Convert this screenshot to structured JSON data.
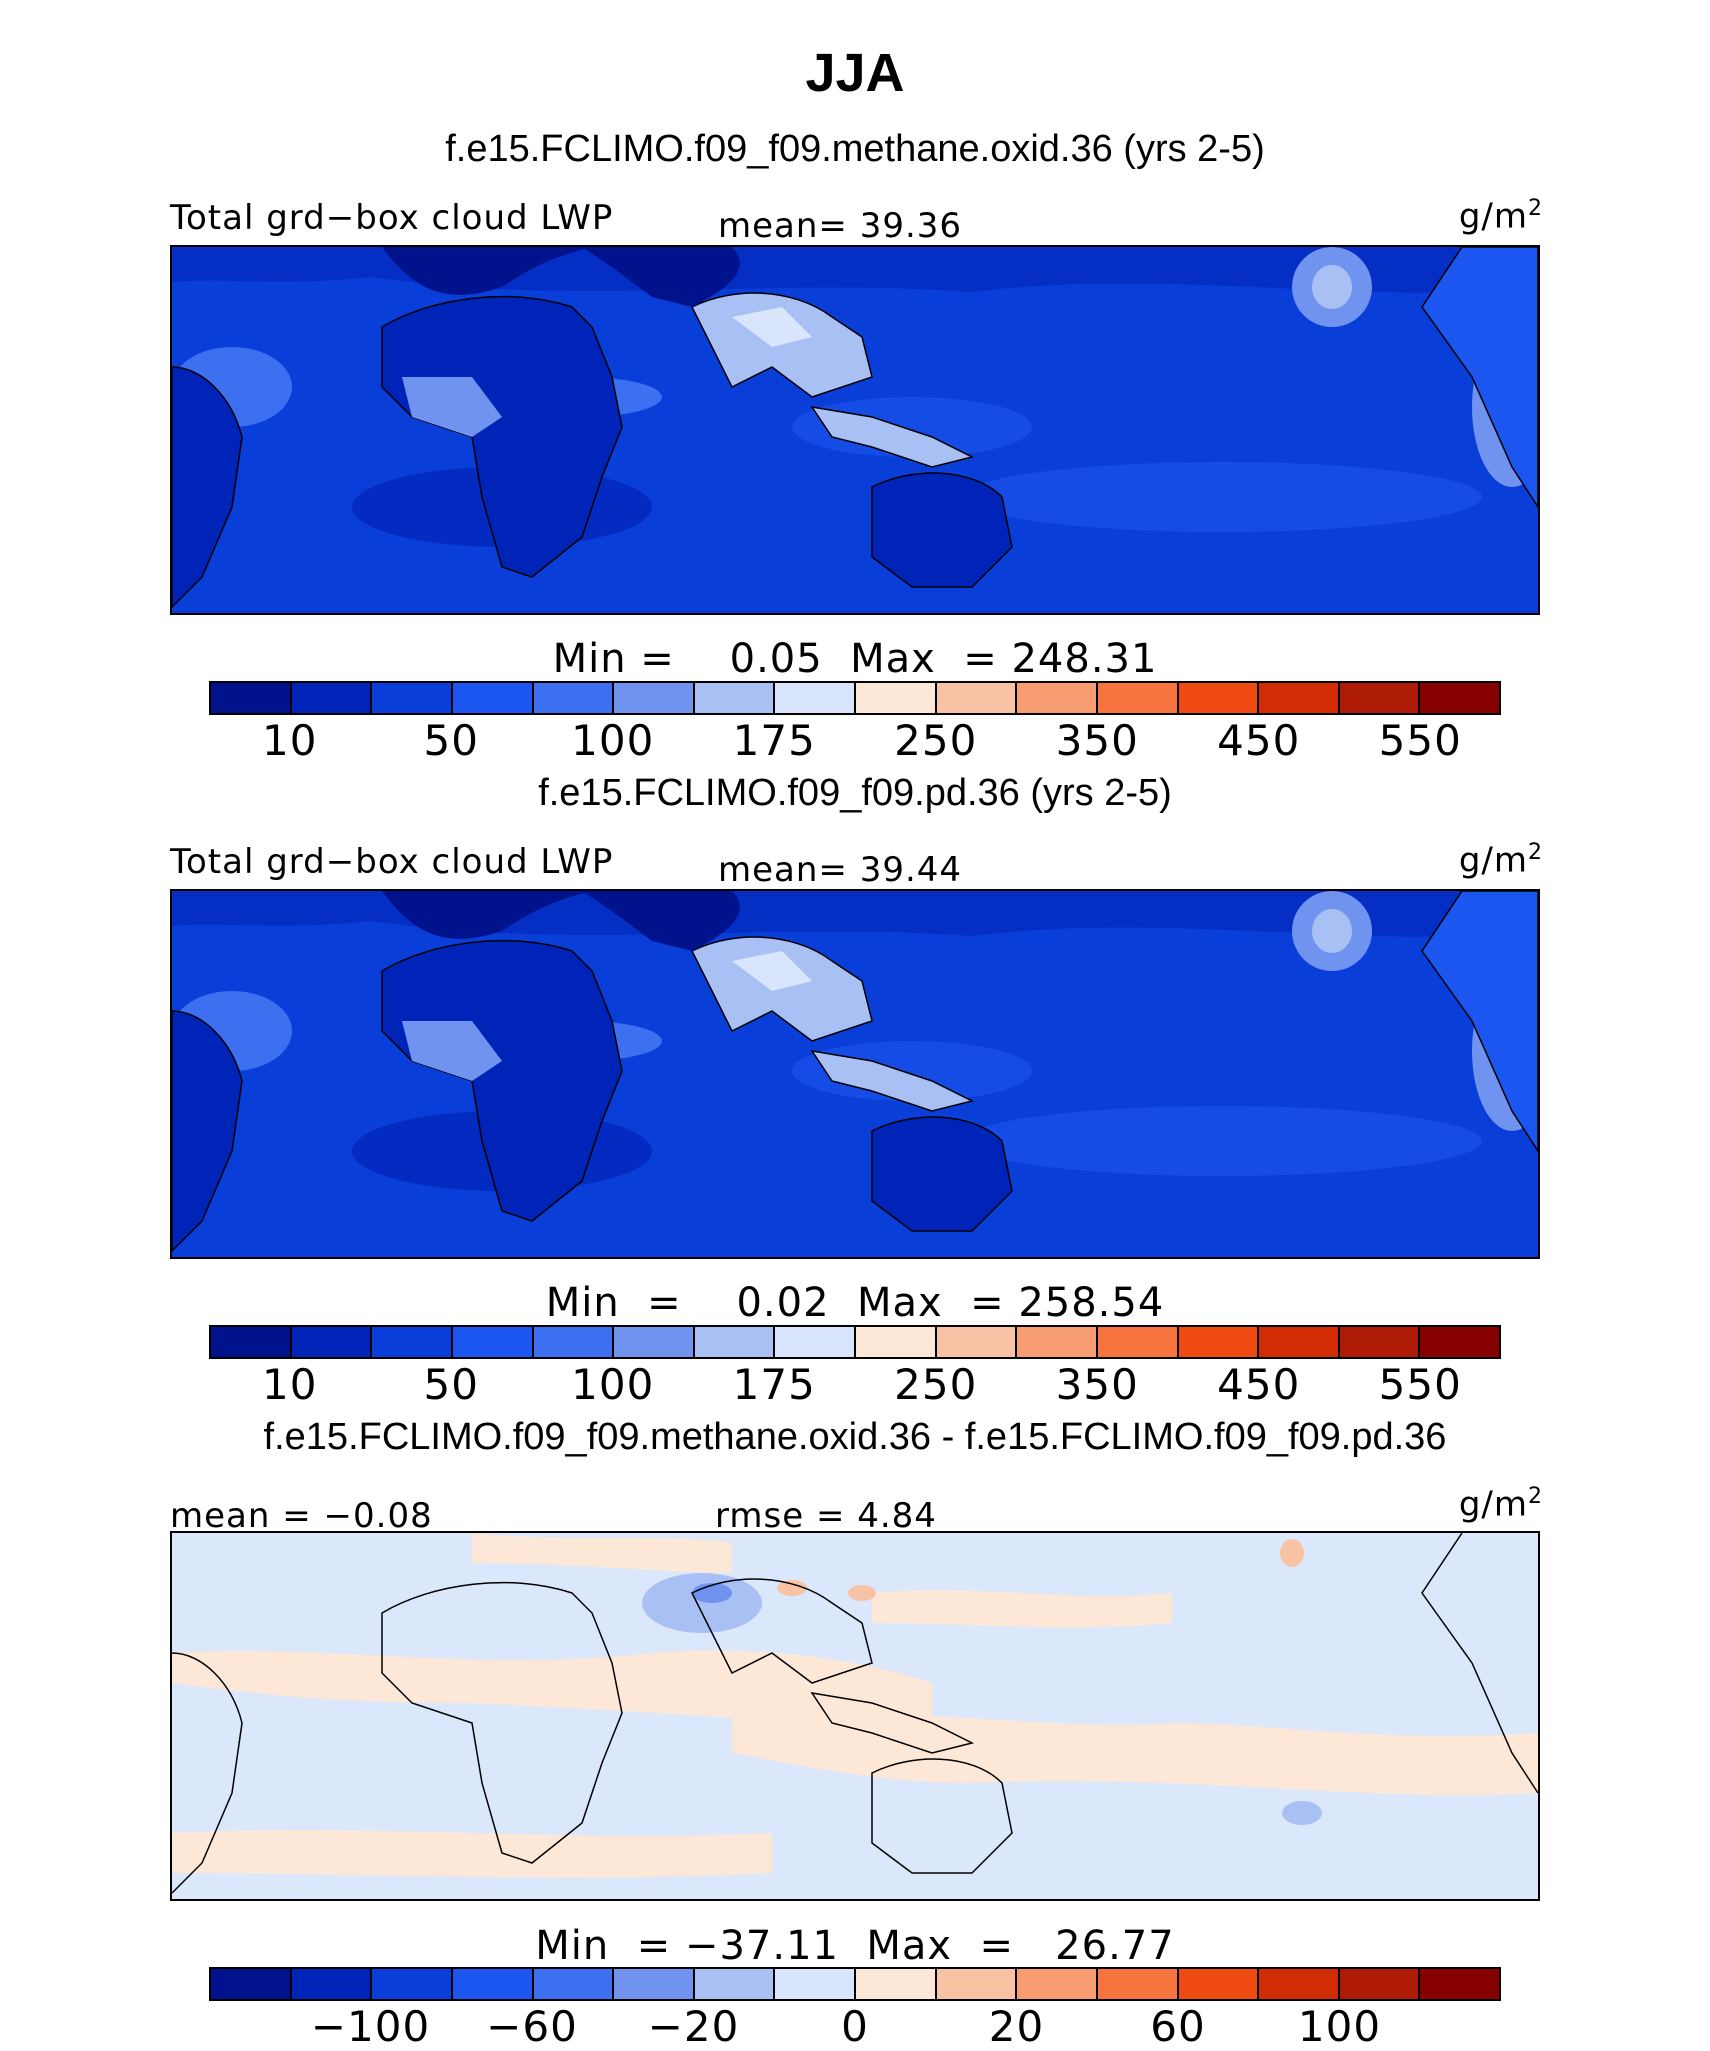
{
  "title": "JJA",
  "colors": {
    "abs_palette": [
      "#00128c",
      "#0024b8",
      "#0a3ed8",
      "#1c56f0",
      "#3d70f0",
      "#7093f0",
      "#a9c0f5",
      "#d8e5fb",
      "#fde7d6",
      "#f8c3a5",
      "#f89c72",
      "#f7743f",
      "#ef4a12",
      "#d22c05",
      "#ad1a05",
      "#860000"
    ],
    "diff_palette": [
      "#00128c",
      "#0024b8",
      "#0a3ed8",
      "#1c56f0",
      "#3d70f0",
      "#7093f0",
      "#a9c0f5",
      "#d8e5fb",
      "#fde7d6",
      "#f8c3a5",
      "#f89c72",
      "#f7743f",
      "#ef4a12",
      "#d22c05",
      "#ad1a05",
      "#860000"
    ],
    "ocean_abs": "#0a3ed8",
    "ocean_diff": "#dbe7fb",
    "land_line": "#000000"
  },
  "panels": [
    {
      "case_title": "f.e15.FCLIMO.f09_f09.methane.oxid.36 (yrs 2-5)",
      "left_label": "Total grd−box cloud LWP",
      "center_label": "mean=  39.36",
      "units": "g/m",
      "units_sup": "2",
      "minmax": "Min =    0.05  Max  = 248.31",
      "palette": "abs",
      "tick_labels": [
        "10",
        "50",
        "100",
        "175",
        "250",
        "350",
        "450",
        "550"
      ]
    },
    {
      "case_title": "f.e15.FCLIMO.f09_f09.pd.36 (yrs 2-5)",
      "left_label": "Total grd−box cloud LWP",
      "center_label": "mean=  39.44",
      "units": "g/m",
      "units_sup": "2",
      "minmax": "Min  =    0.02  Max  = 258.54",
      "palette": "abs",
      "tick_labels": [
        "10",
        "50",
        "100",
        "175",
        "250",
        "350",
        "450",
        "550"
      ]
    },
    {
      "case_title": "f.e15.FCLIMO.f09_f09.methane.oxid.36 - f.e15.FCLIMO.f09_f09.pd.36",
      "left_label": "mean =  −0.08",
      "center_label": "rmse =   4.84",
      "units": "g/m",
      "units_sup": "2",
      "minmax": "Min  = −37.11  Max  =   26.77",
      "palette": "diff",
      "tick_labels": [
        "−100",
        "−60",
        "−20",
        "0",
        "20",
        "60",
        "100"
      ]
    }
  ],
  "chart_data": [
    {
      "type": "heatmap",
      "title": "JJA",
      "subtitle": "f.e15.FCLIMO.f09_f09.methane.oxid.36 (yrs 2-5)",
      "variable": "Total grd−box cloud LWP",
      "units": "g/m2",
      "mean": 39.36,
      "min": 0.05,
      "max": 248.31,
      "colorbar_ticks": [
        10,
        50,
        100,
        175,
        250,
        350,
        450,
        550
      ]
    },
    {
      "type": "heatmap",
      "subtitle": "f.e15.FCLIMO.f09_f09.pd.36 (yrs 2-5)",
      "variable": "Total grd−box cloud LWP",
      "units": "g/m2",
      "mean": 39.44,
      "min": 0.02,
      "max": 258.54,
      "colorbar_ticks": [
        10,
        50,
        100,
        175,
        250,
        350,
        450,
        550
      ]
    },
    {
      "type": "heatmap",
      "subtitle": "f.e15.FCLIMO.f09_f09.methane.oxid.36 - f.e15.FCLIMO.f09_f09.pd.36",
      "units": "g/m2",
      "mean": -0.08,
      "rmse": 4.84,
      "min": -37.11,
      "max": 26.77,
      "colorbar_ticks": [
        -100,
        -60,
        -20,
        0,
        20,
        60,
        100
      ]
    }
  ]
}
